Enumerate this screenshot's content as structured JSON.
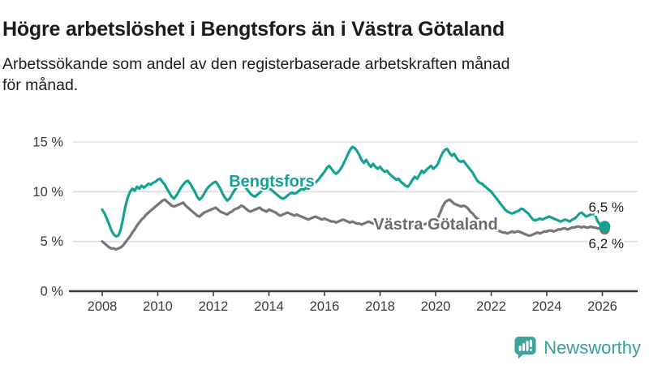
{
  "header": {
    "title": "Högre arbetslöshet i Bengtsfors än i Västra Götaland",
    "subtitle_lines": [
      "Arbetssökande som andel av den registerbaserade arbetskraften månad",
      "för månad."
    ]
  },
  "footer": {
    "brand": "Newsworthy",
    "logo_icon": "bar-chart-speech-bubble-icon"
  },
  "colors": {
    "bengtsfors": "#14a295",
    "vastra_gotaland": "#76767b",
    "series_label_gray": "#6b6b70",
    "grid": "#dadada",
    "axis": "#3a3a3a",
    "text": "#1d1d1d",
    "brand": "#38a09a"
  },
  "chart_data": {
    "type": "line",
    "x_start": {
      "year": 2008,
      "month": 1
    },
    "x_interval": "monthly",
    "x_tick_labels": [
      "2008",
      "2010",
      "2012",
      "2014",
      "2016",
      "2018",
      "2020",
      "2022",
      "2024",
      "2026"
    ],
    "y_tick_labels": [
      "0 %",
      "5 %",
      "10 %",
      "15 %"
    ],
    "ylim": [
      0,
      15.5
    ],
    "grid": "horizontal",
    "legend_position": "inline-labels",
    "series": [
      {
        "name": "Bengtsfors",
        "color": "#14a295",
        "end_label": "6,5 %",
        "end_value": 6.5,
        "values": [
          8.2,
          7.8,
          7.3,
          6.7,
          6.1,
          5.7,
          5.5,
          5.6,
          6.2,
          7.3,
          8.5,
          9.4,
          10.0,
          10.3,
          10.1,
          10.5,
          10.3,
          10.6,
          10.4,
          10.6,
          10.8,
          10.7,
          10.9,
          11.0,
          11.2,
          11.3,
          11.0,
          10.7,
          10.3,
          9.9,
          9.5,
          9.3,
          9.6,
          10.0,
          10.4,
          10.7,
          11.0,
          11.1,
          10.8,
          10.4,
          10.0,
          9.5,
          9.2,
          9.4,
          9.8,
          10.2,
          10.5,
          10.7,
          10.9,
          11.0,
          10.7,
          10.3,
          9.8,
          9.4,
          9.1,
          9.3,
          9.7,
          10.1,
          10.4,
          10.6,
          10.7,
          10.6,
          10.4,
          10.1,
          9.8,
          9.6,
          9.5,
          9.7,
          9.9,
          10.1,
          10.2,
          10.3,
          10.3,
          10.2,
          10.0,
          9.8,
          9.6,
          9.4,
          9.3,
          9.4,
          9.6,
          9.8,
          9.9,
          9.8,
          9.9,
          10.1,
          10.3,
          10.2,
          10.4,
          10.3,
          10.5,
          10.7,
          10.9,
          11.1,
          11.4,
          11.7,
          12.0,
          12.4,
          12.6,
          12.3,
          12.0,
          11.8,
          12.0,
          12.3,
          12.7,
          13.2,
          13.7,
          14.2,
          14.5,
          14.4,
          14.1,
          13.7,
          13.2,
          12.9,
          13.2,
          12.8,
          12.5,
          12.8,
          12.5,
          12.3,
          12.5,
          12.2,
          12.0,
          12.1,
          11.8,
          11.6,
          11.4,
          11.2,
          11.3,
          11.0,
          10.8,
          10.6,
          10.5,
          10.8,
          11.2,
          11.5,
          11.3,
          11.7,
          12.1,
          11.9,
          12.2,
          12.4,
          12.6,
          12.3,
          12.5,
          12.8,
          13.4,
          13.9,
          14.2,
          14.3,
          13.9,
          13.6,
          13.8,
          13.4,
          13.1,
          13.0,
          13.1,
          12.8,
          12.5,
          12.2,
          11.9,
          11.5,
          11.1,
          10.9,
          10.8,
          10.6,
          10.4,
          10.2,
          10.0,
          9.7,
          9.4,
          9.1,
          8.8,
          8.5,
          8.2,
          8.0,
          7.9,
          7.8,
          7.9,
          8.0,
          8.1,
          8.3,
          8.2,
          8.0,
          7.8,
          7.5,
          7.2,
          7.1,
          7.2,
          7.3,
          7.2,
          7.3,
          7.4,
          7.5,
          7.4,
          7.3,
          7.2,
          7.1,
          7.0,
          7.1,
          7.2,
          7.1,
          7.0,
          7.2,
          7.3,
          7.5,
          7.8,
          7.9,
          7.7,
          7.5,
          7.6,
          7.7,
          7.8,
          7.6,
          7.0,
          6.7,
          6.6,
          6.5
        ]
      },
      {
        "name": "Västra Götaland",
        "color": "#76767b",
        "end_label": "6,2 %",
        "end_value": 6.2,
        "values": [
          5.0,
          4.8,
          4.6,
          4.4,
          4.3,
          4.3,
          4.2,
          4.3,
          4.4,
          4.6,
          4.9,
          5.2,
          5.5,
          5.9,
          6.2,
          6.6,
          6.9,
          7.2,
          7.4,
          7.7,
          7.9,
          8.1,
          8.3,
          8.5,
          8.7,
          8.9,
          9.1,
          9.2,
          9.0,
          8.8,
          8.6,
          8.5,
          8.6,
          8.7,
          8.8,
          8.9,
          8.6,
          8.4,
          8.2,
          8.0,
          7.8,
          7.6,
          7.5,
          7.7,
          7.9,
          8.0,
          8.1,
          8.2,
          8.3,
          8.4,
          8.2,
          8.0,
          7.9,
          7.8,
          7.7,
          7.9,
          8.0,
          8.2,
          8.3,
          8.4,
          8.6,
          8.5,
          8.3,
          8.1,
          8.0,
          8.1,
          8.2,
          8.3,
          8.4,
          8.2,
          8.1,
          8.0,
          8.2,
          8.1,
          8.0,
          7.9,
          7.7,
          7.6,
          7.7,
          7.8,
          7.9,
          7.8,
          7.7,
          7.6,
          7.7,
          7.6,
          7.5,
          7.4,
          7.3,
          7.2,
          7.3,
          7.4,
          7.5,
          7.4,
          7.3,
          7.2,
          7.3,
          7.2,
          7.1,
          7.0,
          7.0,
          6.9,
          7.0,
          7.1,
          7.2,
          7.1,
          7.0,
          6.9,
          7.0,
          6.9,
          6.8,
          6.8,
          6.7,
          6.8,
          6.9,
          7.0,
          6.9,
          6.8,
          6.9,
          7.0,
          6.9,
          6.8,
          6.7,
          6.6,
          6.5,
          6.5,
          6.6,
          6.7,
          6.6,
          6.5,
          6.6,
          6.7,
          6.8,
          6.7,
          6.6,
          6.5,
          6.6,
          6.7,
          6.8,
          6.7,
          6.8,
          6.9,
          7.0,
          7.1,
          7.2,
          7.4,
          7.9,
          8.5,
          8.9,
          9.1,
          9.2,
          9.0,
          8.8,
          8.7,
          8.6,
          8.5,
          8.6,
          8.5,
          8.3,
          8.0,
          7.8,
          7.5,
          7.3,
          7.1,
          7.0,
          6.8,
          6.7,
          6.6,
          6.5,
          6.4,
          6.2,
          6.1,
          6.0,
          5.9,
          5.9,
          5.8,
          5.9,
          6.0,
          5.9,
          6.0,
          6.0,
          5.9,
          5.8,
          5.7,
          5.6,
          5.6,
          5.7,
          5.8,
          5.9,
          5.8,
          5.9,
          6.0,
          6.0,
          6.1,
          6.1,
          6.0,
          6.1,
          6.2,
          6.2,
          6.3,
          6.3,
          6.2,
          6.3,
          6.4,
          6.4,
          6.5,
          6.5,
          6.4,
          6.5,
          6.4,
          6.4,
          6.5,
          6.4,
          6.4,
          6.3,
          6.3,
          6.2,
          6.2
        ]
      }
    ]
  }
}
